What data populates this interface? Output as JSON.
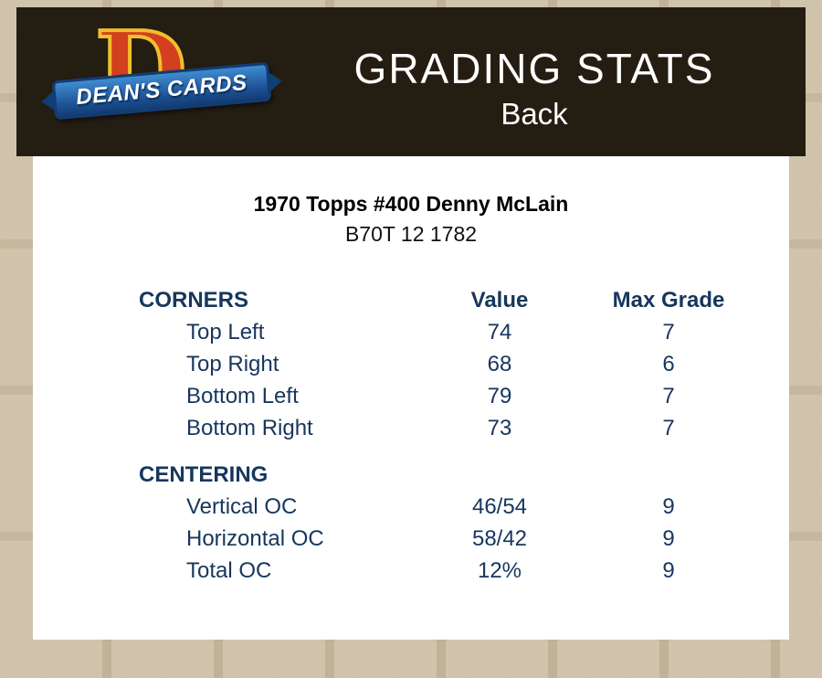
{
  "header": {
    "title": "GRADING STATS",
    "subtitle": "Back"
  },
  "logo": {
    "initial": "D",
    "text": "DEAN'S CARDS"
  },
  "card": {
    "title": "1970 Topps #400 Denny McLain",
    "code": "B70T 12 1782"
  },
  "table": {
    "columns": [
      "Value",
      "Max Grade"
    ],
    "sections": [
      {
        "name": "CORNERS",
        "rows": [
          {
            "label": "Top Left",
            "value": "74",
            "max": "7"
          },
          {
            "label": "Top Right",
            "value": "68",
            "max": "6"
          },
          {
            "label": "Bottom Left",
            "value": "79",
            "max": "7"
          },
          {
            "label": "Bottom Right",
            "value": "73",
            "max": "7"
          }
        ]
      },
      {
        "name": "CENTERING",
        "rows": [
          {
            "label": "Vertical OC",
            "value": "46/54",
            "max": "9"
          },
          {
            "label": "Horizontal OC",
            "value": "58/42",
            "max": "9"
          },
          {
            "label": "Total OC",
            "value": "12%",
            "max": "9"
          }
        ]
      }
    ]
  },
  "colors": {
    "navy": "#17365d",
    "header_bg": "#241d12",
    "page_bg": "#c9bca0",
    "panel_bg": "#ffffff",
    "logo_red": "#d2401f",
    "logo_gold": "#f0bf2c",
    "logo_blue": "#1b4f92"
  }
}
